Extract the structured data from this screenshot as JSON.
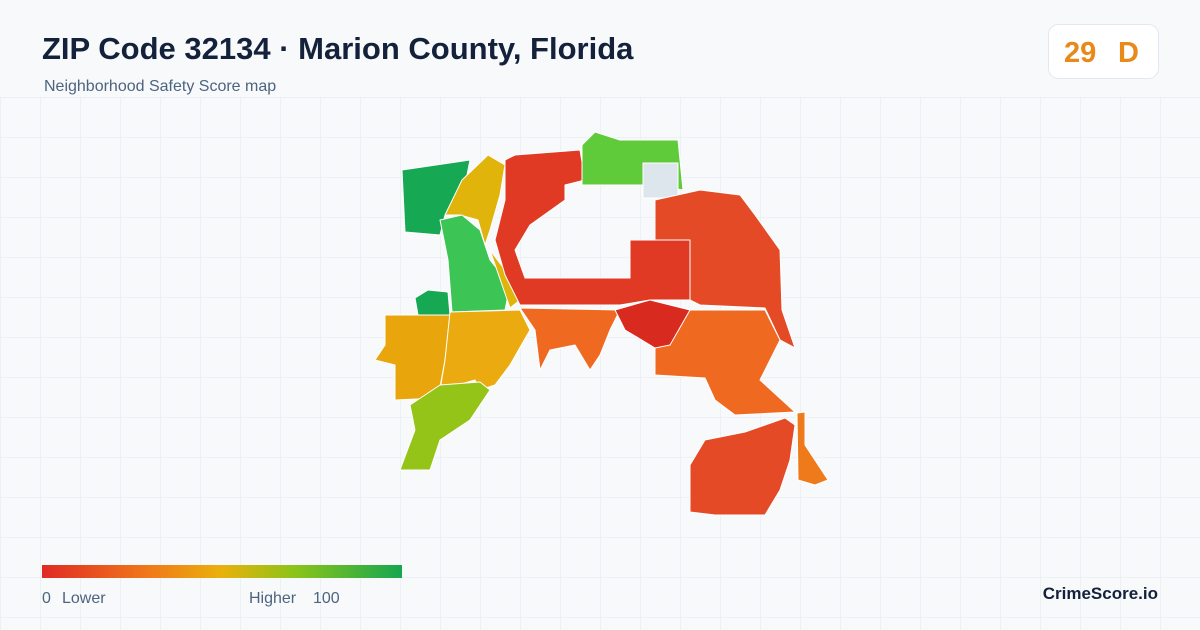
{
  "header": {
    "title": "ZIP Code 32134 · Marion County, Florida",
    "subtitle": "Neighborhood Safety Score map"
  },
  "score": {
    "value": "29",
    "grade": "D"
  },
  "legend": {
    "min": "0",
    "min_label": "Lower",
    "max_label": "Higher",
    "max": "100"
  },
  "brand": "CrimeScore.io"
}
